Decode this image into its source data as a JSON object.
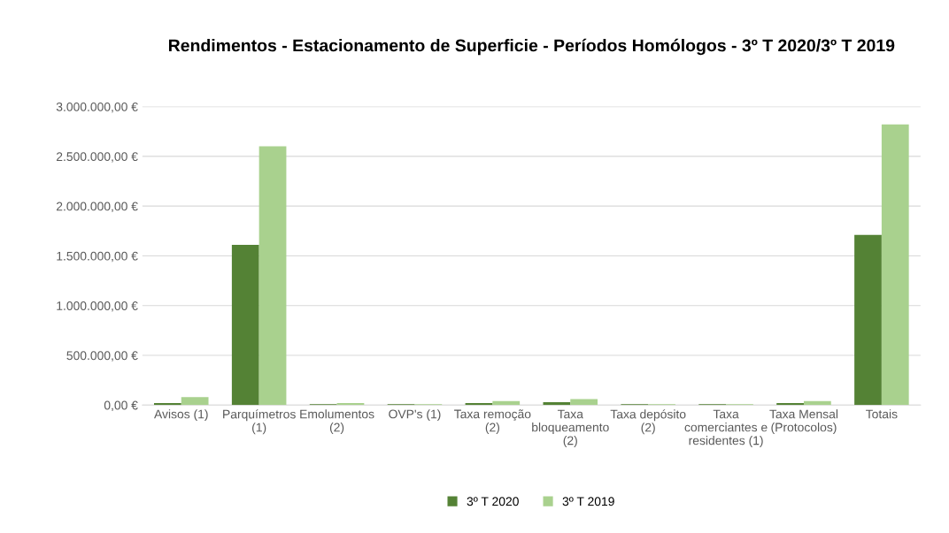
{
  "chart_data": {
    "type": "bar",
    "title": "Rendimentos - Estacionamento de Superficie - Períodos Homólogos - 3º T 2020/3º T 2019",
    "categories": [
      "Avisos (1)",
      "Parquímetros\n(1)",
      "Emolumentos\n(2)",
      "OVP's (1)",
      "Taxa remoção\n(2)",
      "Taxa\nbloqueamento\n(2)",
      "Taxa depósito\n(2)",
      "Taxa\ncomerciantes e\nresidentes (1)",
      "Taxa Mensal\n(Protocolos)",
      "Totais"
    ],
    "series": [
      {
        "name": "3º T 2020",
        "color": "#548235",
        "values": [
          20000,
          1610000,
          10000,
          10000,
          20000,
          30000,
          10000,
          10000,
          20000,
          1710000
        ]
      },
      {
        "name": "3º T 2019",
        "color": "#a9d18e",
        "values": [
          80000,
          2600000,
          20000,
          10000,
          40000,
          60000,
          10000,
          10000,
          40000,
          2820000
        ]
      }
    ],
    "ylim": [
      0,
      3000000
    ],
    "yticks": [
      {
        "value": 0,
        "label": "0,00 €"
      },
      {
        "value": 500000,
        "label": "500.000,00 €"
      },
      {
        "value": 1000000,
        "label": "1.000.000,00 €"
      },
      {
        "value": 1500000,
        "label": "1.500.000,00 €"
      },
      {
        "value": 2000000,
        "label": "2.000.000,00 €"
      },
      {
        "value": 2500000,
        "label": "2.500.000,00 €"
      },
      {
        "value": 3000000,
        "label": "3.000.000,00 €"
      }
    ],
    "grid": "y",
    "legend": "bottom"
  }
}
